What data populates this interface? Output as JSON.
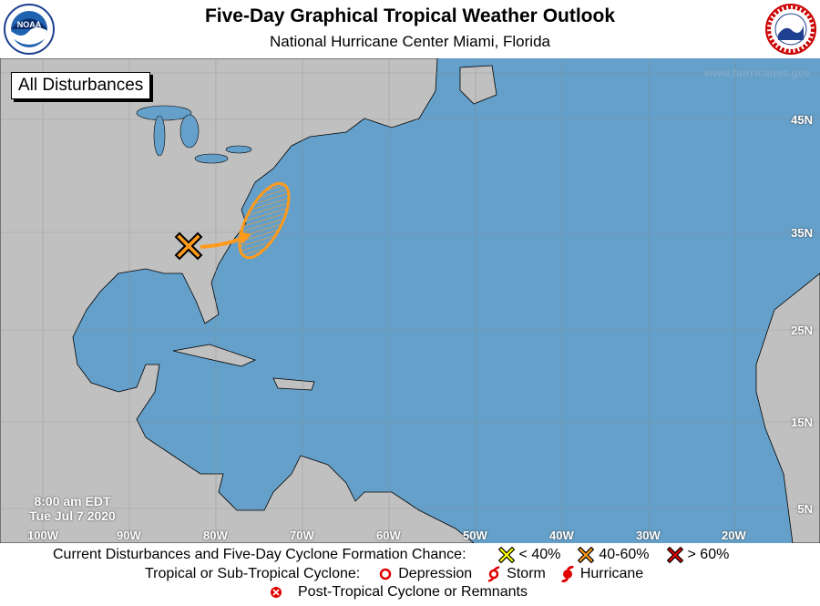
{
  "header": {
    "title": "Five-Day Graphical Tropical Weather Outlook",
    "subtitle": "National Hurricane Center  Miami, Florida",
    "left_logo": "NOAA",
    "right_logo": "NATIONAL WEATHER SERVICE"
  },
  "map": {
    "badge": "All Disturbances",
    "website": "www.hurricanes.gov",
    "time": "8:00 am EDT",
    "date": "Tue Jul 7 2020",
    "latitudes": [
      "45N",
      "35N",
      "25N",
      "15N",
      "5N"
    ],
    "longitudes": [
      "100W",
      "90W",
      "80W",
      "70W",
      "60W",
      "50W",
      "40W",
      "30W",
      "20W"
    ],
    "colors": {
      "ocean": "#64a0ca",
      "land": "#c0c0c0",
      "disturbance": "#ff9a1a"
    },
    "disturbances": [
      {
        "marker": "orange-x-icon",
        "chance_category": "40-60%"
      }
    ]
  },
  "legend": {
    "row1_label": "Current Disturbances and Five-Day Cyclone Formation Chance:",
    "low": "< 40%",
    "medium": "40-60%",
    "high": "> 60%",
    "row2_label": "Tropical or Sub-Tropical Cyclone:",
    "depression": "Depression",
    "storm": "Storm",
    "hurricane": "Hurricane",
    "post_tropical": "Post-Tropical Cyclone or Remnants",
    "colors": {
      "low": "#ffff00",
      "medium": "#ff9a1a",
      "high": "#e00000",
      "cyclone": "#e00000"
    }
  }
}
